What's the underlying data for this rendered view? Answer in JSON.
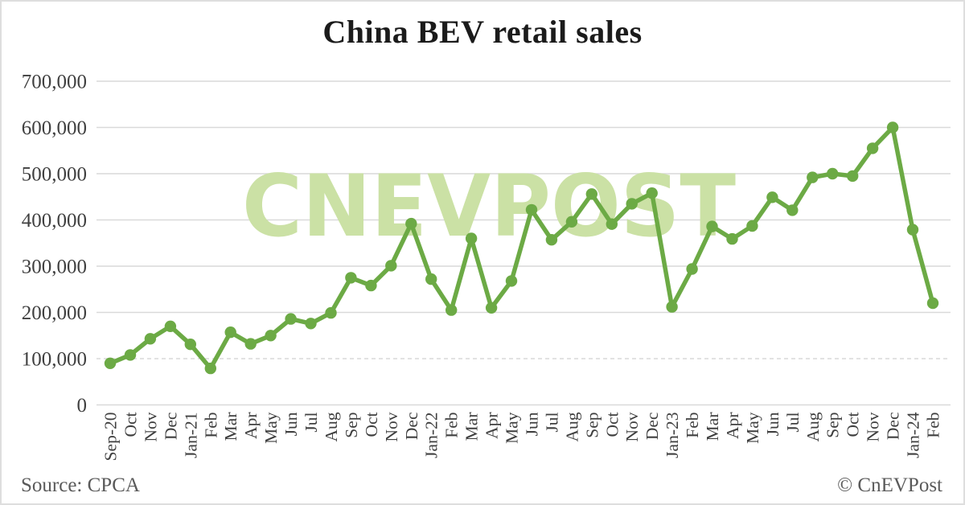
{
  "title": "China BEV retail sales",
  "watermark": "CNEVPOST",
  "footer": {
    "source": "Source: CPCA",
    "credit": "© CnEVPost"
  },
  "colors": {
    "line": "#6caa45",
    "marker": "#6caa45",
    "watermark": "#cbe1a5",
    "gridline": "#d9d9d9",
    "axis_text": "#3f3f3f",
    "title_text": "#1b1b1b",
    "footer_text": "#5a5a5a",
    "background": "#ffffff",
    "border": "#dedede"
  },
  "chart_data": {
    "type": "line",
    "title": "China BEV retail sales",
    "xlabel": "",
    "ylabel": "",
    "ylim": [
      0,
      700000
    ],
    "ytick_step": 100000,
    "grid": "horizontal",
    "dashed_gridline_value": 100000,
    "legend": "none",
    "marker": "circle",
    "categories": [
      "Sep-20",
      "Oct",
      "Nov",
      "Dec",
      "Jan-21",
      "Feb",
      "Mar",
      "Apr",
      "May",
      "Jun",
      "Jul",
      "Aug",
      "Sep",
      "Oct",
      "Nov",
      "Dec",
      "Jan-22",
      "Feb",
      "Mar",
      "Apr",
      "May",
      "Jun",
      "Jul",
      "Aug",
      "Sep",
      "Oct",
      "Nov",
      "Dec",
      "Jan-23",
      "Feb",
      "Mar",
      "Apr",
      "May",
      "Jun",
      "Jul",
      "Aug",
      "Sep",
      "Oct",
      "Nov",
      "Dec",
      "Jan-24",
      "Feb"
    ],
    "values": [
      90000,
      108000,
      143000,
      170000,
      131000,
      79000,
      157000,
      132000,
      150000,
      186000,
      176000,
      199000,
      275000,
      258000,
      301000,
      392000,
      272000,
      205000,
      360000,
      210000,
      268000,
      422000,
      357000,
      396000,
      456000,
      391000,
      435000,
      458000,
      212000,
      294000,
      386000,
      359000,
      387000,
      449000,
      421000,
      492000,
      500000,
      495000,
      555000,
      600000,
      379000,
      220000
    ]
  }
}
